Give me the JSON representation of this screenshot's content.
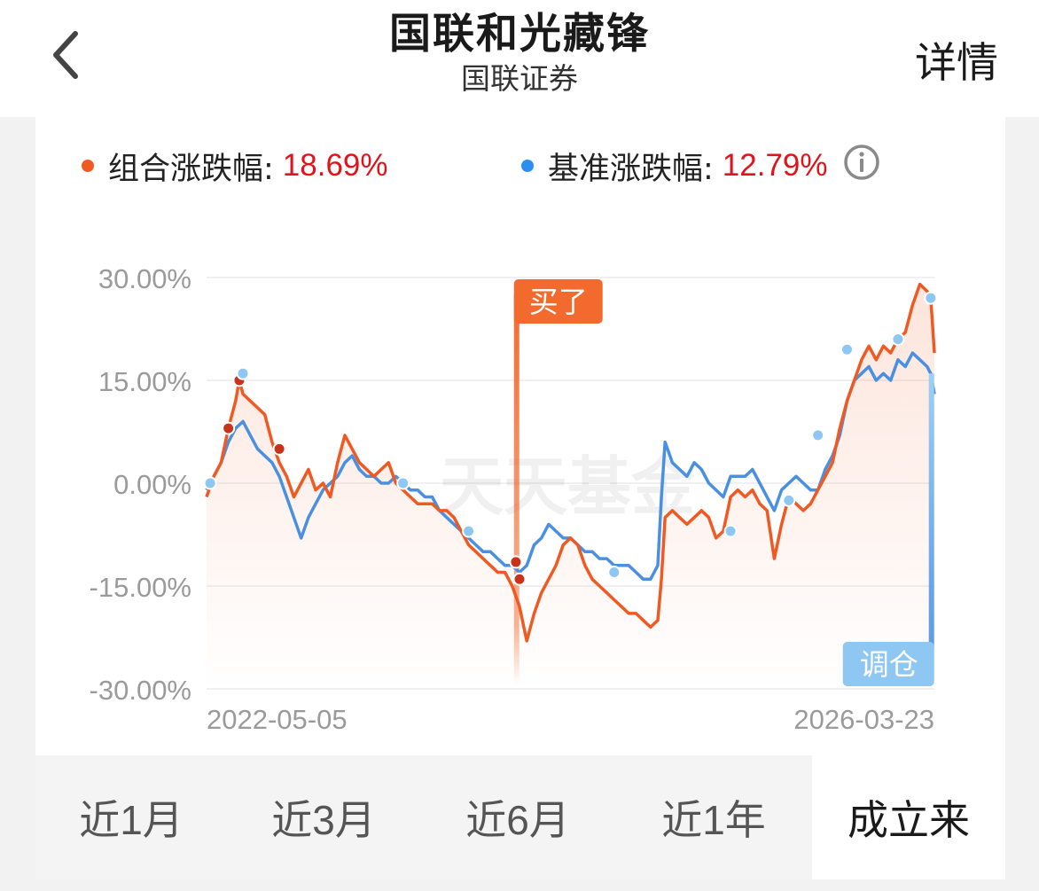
{
  "header": {
    "title": "国联和光藏锋",
    "subtitle": "国联证券",
    "detail_label": "详情"
  },
  "legend": {
    "portfolio_label": "组合涨跌幅:",
    "portfolio_value": "18.69%",
    "benchmark_label": "基准涨跌幅:",
    "benchmark_value": "12.79%"
  },
  "colors": {
    "portfolio": "#f05a22",
    "benchmark": "#4a90e2",
    "value_text": "#e0141a",
    "buy_flag": "#f26a2e",
    "rebalance_flag": "#8ec8f2"
  },
  "icons": {
    "back": "chevron-left-icon",
    "info": "info-icon"
  },
  "watermark": "天天基金",
  "markers": {
    "buy_label": "买了",
    "rebalance_label": "调仓"
  },
  "chart_data": {
    "type": "line",
    "title": "",
    "xlabel": "",
    "ylabel": "",
    "ylim": [
      -30,
      30
    ],
    "yticks": [
      "30.00%",
      "15.00%",
      "0.00%",
      "-15.00%",
      "-30.00%"
    ],
    "ytick_values": [
      30,
      15,
      0,
      -15,
      -30
    ],
    "x_start_label": "2022-05-05",
    "x_end_label": "2026-03-23",
    "x_range": [
      0,
      100
    ],
    "series": [
      {
        "name": "组合涨跌幅",
        "color": "#f05a22",
        "points": [
          [
            0,
            -2
          ],
          [
            1,
            1
          ],
          [
            2,
            3
          ],
          [
            3,
            8
          ],
          [
            4,
            12
          ],
          [
            4.5,
            15
          ],
          [
            5,
            13
          ],
          [
            6,
            12
          ],
          [
            7,
            11
          ],
          [
            8,
            10
          ],
          [
            9,
            6
          ],
          [
            10,
            3
          ],
          [
            11,
            1
          ],
          [
            12,
            -2
          ],
          [
            13,
            0
          ],
          [
            14,
            2
          ],
          [
            15,
            -1
          ],
          [
            16,
            0
          ],
          [
            17,
            -2
          ],
          [
            18,
            3
          ],
          [
            19,
            7
          ],
          [
            20,
            5
          ],
          [
            21,
            3
          ],
          [
            22,
            2
          ],
          [
            23,
            1
          ],
          [
            24,
            2
          ],
          [
            25,
            3
          ],
          [
            26,
            0
          ],
          [
            27,
            -1
          ],
          [
            28,
            -2
          ],
          [
            29,
            -3
          ],
          [
            30,
            -3
          ],
          [
            31,
            -3
          ],
          [
            32,
            -4
          ],
          [
            33,
            -4
          ],
          [
            34,
            -5
          ],
          [
            35,
            -7
          ],
          [
            36,
            -9
          ],
          [
            37,
            -10
          ],
          [
            38,
            -11
          ],
          [
            39,
            -12
          ],
          [
            40,
            -13
          ],
          [
            41,
            -13
          ],
          [
            42,
            -15
          ],
          [
            43,
            -18
          ],
          [
            44,
            -23
          ],
          [
            45,
            -19
          ],
          [
            46,
            -16
          ],
          [
            47,
            -14
          ],
          [
            48,
            -12
          ],
          [
            49,
            -9
          ],
          [
            50,
            -8
          ],
          [
            51,
            -9
          ],
          [
            52,
            -12
          ],
          [
            53,
            -14
          ],
          [
            54,
            -15
          ],
          [
            55,
            -16
          ],
          [
            56,
            -17
          ],
          [
            57,
            -18
          ],
          [
            58,
            -19
          ],
          [
            59,
            -19
          ],
          [
            60,
            -20
          ],
          [
            61,
            -21
          ],
          [
            62,
            -20
          ],
          [
            62.5,
            -14
          ],
          [
            63,
            -5
          ],
          [
            64,
            -4
          ],
          [
            65,
            -5
          ],
          [
            66,
            -6
          ],
          [
            67,
            -5
          ],
          [
            68,
            -4
          ],
          [
            69,
            -5
          ],
          [
            70,
            -8
          ],
          [
            71,
            -7
          ],
          [
            72,
            -2
          ],
          [
            73,
            -1
          ],
          [
            74,
            -2
          ],
          [
            75,
            -1
          ],
          [
            76,
            -3
          ],
          [
            77,
            -4
          ],
          [
            78,
            -11
          ],
          [
            79,
            -6
          ],
          [
            80,
            -2
          ],
          [
            81,
            -3
          ],
          [
            82,
            -4
          ],
          [
            83,
            -3
          ],
          [
            84,
            -1
          ],
          [
            85,
            1
          ],
          [
            86,
            3
          ],
          [
            87,
            8
          ],
          [
            88,
            12
          ],
          [
            89,
            15
          ],
          [
            90,
            18
          ],
          [
            91,
            20
          ],
          [
            92,
            18
          ],
          [
            93,
            20
          ],
          [
            94,
            19
          ],
          [
            95,
            21
          ],
          [
            96,
            22
          ],
          [
            97,
            26
          ],
          [
            98,
            29
          ],
          [
            99,
            28
          ],
          [
            99.5,
            27
          ],
          [
            100,
            19
          ]
        ]
      },
      {
        "name": "基准涨跌幅",
        "color": "#4a90e2",
        "points": [
          [
            0,
            -1
          ],
          [
            1,
            1
          ],
          [
            2,
            3
          ],
          [
            3,
            6
          ],
          [
            4,
            8
          ],
          [
            5,
            9
          ],
          [
            6,
            7
          ],
          [
            7,
            5
          ],
          [
            8,
            4
          ],
          [
            9,
            3
          ],
          [
            10,
            1
          ],
          [
            11,
            -2
          ],
          [
            12,
            -5
          ],
          [
            13,
            -8
          ],
          [
            14,
            -5
          ],
          [
            15,
            -3
          ],
          [
            16,
            -1
          ],
          [
            17,
            0
          ],
          [
            18,
            1
          ],
          [
            19,
            3
          ],
          [
            20,
            4
          ],
          [
            21,
            2
          ],
          [
            22,
            1
          ],
          [
            23,
            1
          ],
          [
            24,
            0
          ],
          [
            25,
            0
          ],
          [
            26,
            1
          ],
          [
            27,
            0
          ],
          [
            28,
            -1
          ],
          [
            29,
            -1
          ],
          [
            30,
            -2
          ],
          [
            31,
            -2
          ],
          [
            32,
            -4
          ],
          [
            33,
            -5
          ],
          [
            34,
            -6
          ],
          [
            35,
            -7
          ],
          [
            36,
            -8
          ],
          [
            37,
            -9
          ],
          [
            38,
            -10
          ],
          [
            39,
            -10
          ],
          [
            40,
            -11
          ],
          [
            41,
            -12
          ],
          [
            42,
            -12
          ],
          [
            43,
            -13
          ],
          [
            44,
            -12
          ],
          [
            45,
            -9
          ],
          [
            46,
            -8
          ],
          [
            47,
            -6
          ],
          [
            48,
            -7
          ],
          [
            49,
            -8
          ],
          [
            50,
            -8
          ],
          [
            51,
            -9
          ],
          [
            52,
            -10
          ],
          [
            53,
            -10
          ],
          [
            54,
            -11
          ],
          [
            55,
            -11
          ],
          [
            56,
            -12
          ],
          [
            57,
            -12
          ],
          [
            58,
            -12
          ],
          [
            59,
            -13
          ],
          [
            60,
            -14
          ],
          [
            61,
            -14
          ],
          [
            62,
            -12
          ],
          [
            62.5,
            -2
          ],
          [
            63,
            6
          ],
          [
            64,
            3
          ],
          [
            65,
            2
          ],
          [
            66,
            1
          ],
          [
            67,
            3
          ],
          [
            68,
            2
          ],
          [
            69,
            0
          ],
          [
            70,
            -1
          ],
          [
            71,
            -2
          ],
          [
            72,
            1
          ],
          [
            73,
            1
          ],
          [
            74,
            1
          ],
          [
            75,
            2
          ],
          [
            76,
            0
          ],
          [
            77,
            -2
          ],
          [
            78,
            -4
          ],
          [
            79,
            -1
          ],
          [
            80,
            0
          ],
          [
            81,
            1
          ],
          [
            82,
            0
          ],
          [
            83,
            -1
          ],
          [
            84,
            -1
          ],
          [
            85,
            2
          ],
          [
            86,
            4
          ],
          [
            87,
            7
          ],
          [
            88,
            12
          ],
          [
            89,
            15
          ],
          [
            90,
            16
          ],
          [
            91,
            17
          ],
          [
            92,
            15
          ],
          [
            93,
            16
          ],
          [
            94,
            15
          ],
          [
            95,
            18
          ],
          [
            96,
            17
          ],
          [
            97,
            19
          ],
          [
            98,
            18
          ],
          [
            99,
            17
          ],
          [
            99.5,
            16
          ],
          [
            100,
            13
          ]
        ]
      }
    ],
    "portfolio_markers": [
      [
        0.5,
        0
      ],
      [
        3,
        8
      ],
      [
        4.5,
        15
      ],
      [
        10,
        5
      ],
      [
        42.5,
        -11.5
      ],
      [
        43,
        -14
      ]
    ],
    "benchmark_markers": [
      [
        0.5,
        0
      ],
      [
        5,
        16
      ],
      [
        27,
        0
      ],
      [
        36,
        -7
      ],
      [
        56,
        -13
      ],
      [
        72,
        -7
      ],
      [
        80,
        -2.5
      ],
      [
        84,
        7
      ],
      [
        88,
        19.5
      ],
      [
        95,
        21
      ],
      [
        99.5,
        27
      ]
    ],
    "buy_marker_x": 42.6,
    "rebalance_marker_x": 99.6
  }
}
